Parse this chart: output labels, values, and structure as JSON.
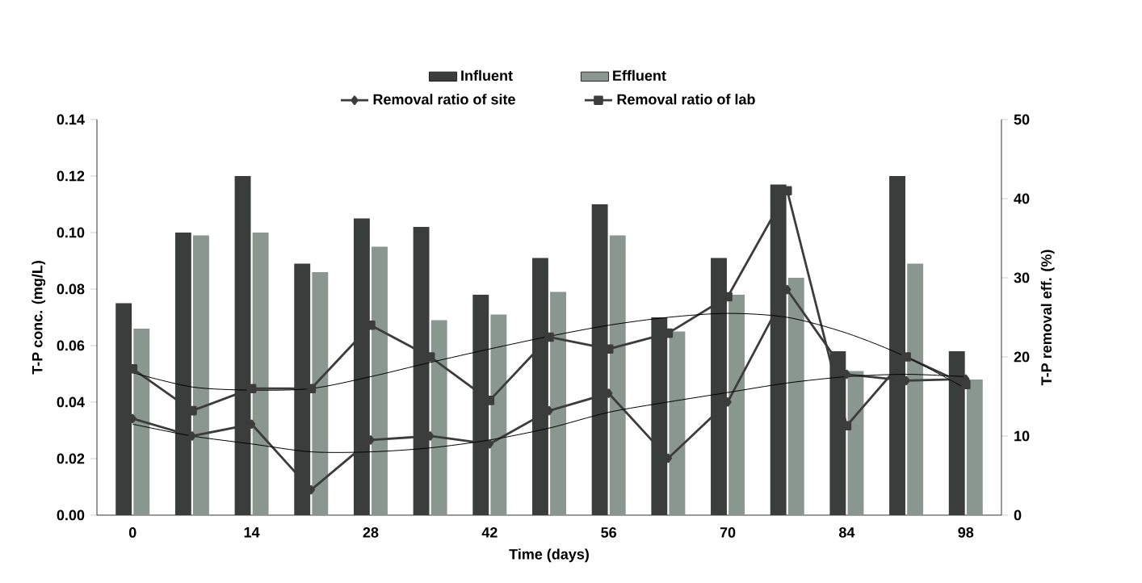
{
  "chart_data": {
    "type": "bar",
    "xlabel": "Time (days)",
    "ylabel": "T-P conc. (mg/L)",
    "y2label": "T-P removal eff. (%)",
    "categories": [
      "0",
      null,
      "14",
      null,
      "28",
      null,
      "42",
      null,
      "56",
      null,
      "70",
      null,
      "84",
      null,
      "98"
    ],
    "series": [
      {
        "name": "Influent",
        "color": "#3a3d3c",
        "values": [
          0.075,
          0.1,
          0.12,
          0.089,
          0.105,
          0.102,
          0.078,
          0.091,
          0.11,
          0.07,
          0.091,
          0.117,
          0.058,
          0.12,
          0.058
        ]
      },
      {
        "name": "Effluent",
        "color": "#8a9690",
        "values": [
          0.066,
          0.099,
          0.1,
          0.086,
          0.095,
          0.069,
          0.071,
          0.079,
          0.099,
          0.065,
          0.078,
          0.084,
          0.051,
          0.089,
          0.048
        ]
      },
      {
        "name": "Removal ratio of site",
        "type": "line",
        "axis": "y2",
        "marker": "diamond",
        "color": "#3c3c3c",
        "values": [
          12.2,
          10,
          11.5,
          3.2,
          9.5,
          10,
          9,
          13.2,
          15.4,
          7.2,
          14.3,
          28.5,
          17.8,
          17,
          17.2
        ]
      },
      {
        "name": "Removal ratio of lab",
        "type": "line",
        "axis": "y2",
        "marker": "square",
        "color": "#3c3c3c",
        "values": [
          18.5,
          13.2,
          16,
          16,
          24,
          20,
          14.5,
          22.5,
          21,
          23,
          27.6,
          41,
          11.3,
          20,
          16.5
        ]
      },
      {
        "type": "line",
        "axis": "y2",
        "marker": "none",
        "color": "#000000",
        "values": [
          18,
          16.2,
          15.8,
          16,
          17.5,
          19.3,
          21,
          22.6,
          24,
          25,
          25.5,
          25,
          23,
          20,
          16
        ]
      },
      {
        "type": "line",
        "axis": "y2",
        "marker": "none",
        "color": "#000000",
        "values": [
          11.5,
          10,
          9,
          8,
          8,
          8.5,
          9.5,
          11,
          13,
          14.3,
          15.5,
          16.7,
          17.5,
          17.8,
          17.5
        ]
      }
    ],
    "ylim": [
      0,
      0.14
    ],
    "yticks": [
      {
        "value": 0,
        "label": "0.00"
      },
      {
        "value": 0.02,
        "label": "0.02"
      },
      {
        "value": 0.04,
        "label": "0.04"
      },
      {
        "value": 0.06,
        "label": "0.06"
      },
      {
        "value": 0.08,
        "label": "0.08"
      },
      {
        "value": 0.1,
        "label": "0.10"
      },
      {
        "value": 0.12,
        "label": "0.12"
      },
      {
        "value": 0.14,
        "label": "0.14"
      }
    ],
    "y2lim": [
      0,
      50
    ],
    "y2ticks": [
      0,
      10,
      20,
      30,
      40,
      50
    ],
    "legend": "top",
    "grid": false
  }
}
